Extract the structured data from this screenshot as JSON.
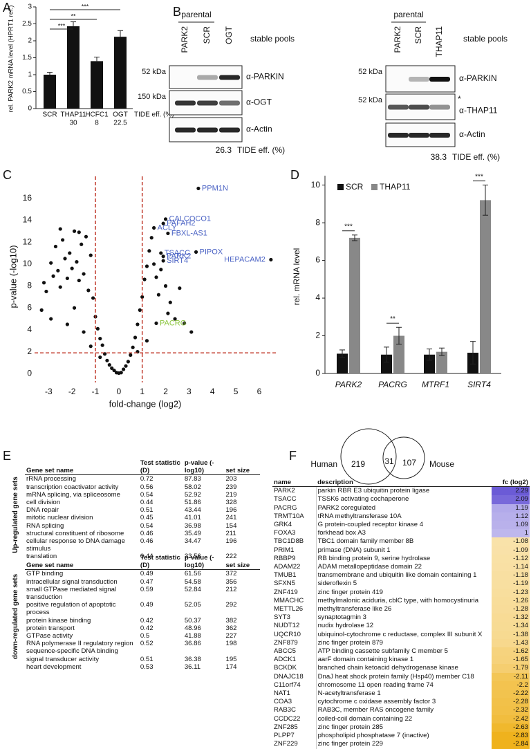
{
  "panels": [
    "A",
    "B",
    "C",
    "D",
    "E",
    "F"
  ],
  "chart_data": [
    {
      "type": "bar",
      "ylabel": "rel. PARK2 mRNA level (HPRT1 ref.)",
      "categories": [
        "SCR",
        "THAP11",
        "HCFC1",
        "OGT"
      ],
      "values": [
        1.0,
        2.43,
        1.4,
        2.12
      ],
      "errors": [
        0.07,
        0.13,
        0.12,
        0.18
      ],
      "color": "#111111",
      "ylim": [
        0,
        3
      ],
      "yticks": [
        0,
        0.5,
        1,
        1.5,
        2,
        2.5,
        3
      ],
      "tide": [
        null,
        30,
        8,
        22.5
      ],
      "tide_label": "TIDE eff. (%)",
      "significance": [
        {
          "from": 0,
          "to": 3,
          "label": "***"
        },
        {
          "from": 0,
          "to": 2,
          "label": "**"
        },
        {
          "from": 0,
          "to": 1,
          "label": "***"
        }
      ]
    },
    {
      "type": "scatter",
      "xlabel": "fold-change (log2)",
      "ylabel": "p-value (-log10)",
      "xlim": [
        -3.6,
        6.8
      ],
      "ylim": [
        -0.8,
        18
      ],
      "xticks": [
        -3,
        -2,
        -1,
        0,
        1,
        2,
        3,
        4,
        5,
        6
      ],
      "yticks": [
        0,
        2,
        4,
        6,
        8,
        10,
        12,
        14,
        16
      ],
      "thresholds": {
        "x": [
          -1,
          1
        ],
        "y": 1.9,
        "color": "#c0392b"
      },
      "color": "#111111",
      "x": [
        -3.2,
        -3.1,
        -2.9,
        -2.8,
        -2.7,
        -2.6,
        -2.5,
        -2.4,
        -2.3,
        -2.2,
        -2.1,
        -2.0,
        -1.9,
        -1.8,
        -1.7,
        -1.6,
        -1.5,
        -1.4,
        -1.3,
        -1.2,
        -1.1,
        -1.0,
        -0.9,
        -0.8,
        -0.7,
        -0.6,
        -0.5,
        -0.4,
        -0.3,
        -0.2,
        -0.1,
        0,
        0.1,
        0.2,
        0.3,
        0.4,
        0.5,
        0.6,
        0.7,
        0.8,
        0.9,
        1.0,
        1.1,
        1.2,
        1.3,
        1.4,
        1.5,
        1.6,
        1.7,
        1.8,
        2.0,
        2.2,
        2.4,
        2.6,
        2.8,
        3.1,
        -2.9,
        -3.3,
        -1.9,
        -2.2,
        -1.5,
        0.8,
        -0.8,
        1.2,
        -1.2,
        2.1,
        -2.5,
        -1.7
      ],
      "values": [
        8.3,
        7.5,
        10.1,
        8.9,
        11.6,
        9.4,
        7.9,
        12.2,
        10.5,
        8.7,
        11.0,
        9.6,
        13.0,
        10.2,
        8.5,
        11.8,
        9.1,
        12.5,
        7.6,
        10.8,
        6.9,
        5.2,
        4.1,
        3.2,
        2.6,
        1.8,
        1.2,
        0.8,
        0.5,
        0.3,
        0.1,
        0.05,
        0.1,
        0.4,
        0.7,
        1.1,
        1.7,
        2.4,
        3.3,
        4.5,
        5.8,
        7.0,
        8.6,
        9.8,
        11.2,
        12.4,
        10.0,
        8.8,
        7.2,
        9.5,
        8.0,
        6.5,
        5.0,
        7.8,
        4.6,
        3.8,
        5.0,
        5.8,
        6.0,
        4.5,
        3.8,
        2.0,
        1.5,
        3.0,
        2.5,
        5.5,
        13.2,
        12.9
      ],
      "labeled_points": [
        {
          "label": "PPM1N",
          "x": 3.4,
          "y": 16.9,
          "color": "#4a62c4"
        },
        {
          "label": "CALCOCO1",
          "x": 2.0,
          "y": 14.1,
          "color": "#4a62c4"
        },
        {
          "label": "PAFAH2",
          "x": 1.9,
          "y": 13.7,
          "color": "#4a62c4"
        },
        {
          "label": "ACLY",
          "x": 1.5,
          "y": 13.3,
          "color": "#4a62c4"
        },
        {
          "label": "FBXL-AS1",
          "x": 2.1,
          "y": 12.8,
          "color": "#4a62c4"
        },
        {
          "label": "TSACC",
          "x": 1.8,
          "y": 11.0,
          "color": "#4a62c4"
        },
        {
          "label": "PIPOX",
          "x": 3.3,
          "y": 11.1,
          "color": "#4a62c4"
        },
        {
          "label": "PARK2",
          "x": 1.9,
          "y": 10.7,
          "color": "#4a62c4"
        },
        {
          "label": "SIRT4",
          "x": 1.9,
          "y": 10.3,
          "color": "#4a62c4"
        },
        {
          "label": "HEPACAM2",
          "x": 6.5,
          "y": 10.4,
          "color": "#4a62c4"
        },
        {
          "label": "PACRG",
          "x": 1.6,
          "y": 4.6,
          "color": "#8cc63f"
        }
      ]
    },
    {
      "type": "grouped_bar",
      "ylabel": "rel. mRNA level",
      "categories": [
        "PARK2",
        "PACRG",
        "MTRF1",
        "SIRT4"
      ],
      "series": [
        {
          "name": "SCR",
          "color": "#111111",
          "values": [
            1.05,
            1.0,
            1.0,
            1.1
          ],
          "errors": [
            0.2,
            0.4,
            0.3,
            0.6
          ]
        },
        {
          "name": "THAP11",
          "color": "#888888",
          "values": [
            7.2,
            2.0,
            1.15,
            9.2
          ],
          "errors": [
            0.15,
            0.45,
            0.2,
            0.8
          ]
        }
      ],
      "ylim": [
        0,
        10.5
      ],
      "yticks": [
        0,
        2,
        4,
        6,
        8,
        10
      ],
      "significance": [
        {
          "category": 0,
          "label": "***"
        },
        {
          "category": 1,
          "label": "**"
        },
        {
          "category": 3,
          "label": "***"
        }
      ]
    }
  ],
  "blots": {
    "left": {
      "header": "parental",
      "lanes": [
        "PARK2",
        "SCR",
        "OGT"
      ],
      "pools": "stable pools",
      "rows": [
        {
          "kda": "52 kDa",
          "antibody": "α-PARKIN"
        },
        {
          "kda": "150 kDa",
          "antibody": "α-OGT"
        },
        {
          "kda": null,
          "antibody": "α-Actin"
        }
      ],
      "tide": 26.3,
      "tide_label": "TIDE eff. (%)"
    },
    "right": {
      "header": "parental",
      "lanes": [
        "PARK2",
        "SCR",
        "THAP11"
      ],
      "pools": "stable pools",
      "rows": [
        {
          "kda": "52 kDa",
          "antibody": "α-PARKIN"
        },
        {
          "kda": "52 kDa",
          "antibody": "α-THAP11",
          "mark": "*"
        },
        {
          "kda": null,
          "antibody": "α-Actin"
        }
      ],
      "tide": 38.3,
      "tide_label": "TIDE eff. (%)"
    }
  },
  "tables": {
    "columns": [
      "Gene set name",
      "Test statistic (D)",
      "p-value (-log10)",
      "set size"
    ],
    "up": {
      "label": "Up-regulated gene sets",
      "rows": [
        [
          "rRNA processing",
          0.72,
          87.83,
          203
        ],
        [
          "transcription coactivator activity",
          0.56,
          58.02,
          239
        ],
        [
          "mRNA splicing, via spliceosome",
          0.54,
          52.92,
          219
        ],
        [
          "cell division",
          0.44,
          51.86,
          328
        ],
        [
          "DNA repair",
          0.51,
          43.44,
          196
        ],
        [
          "mitotic nuclear division",
          0.45,
          41.01,
          241
        ],
        [
          "RNA splicing",
          0.54,
          36.98,
          154
        ],
        [
          "structural constituent of ribosome",
          0.46,
          35.49,
          211
        ],
        [
          "cellular response to DNA damage stimulus",
          0.46,
          34.47,
          196
        ],
        [
          "translation",
          0.44,
          33.56,
          222
        ]
      ]
    },
    "down": {
      "label": "down-regulated gene sets",
      "rows": [
        [
          "GTP binding",
          0.49,
          61.56,
          372
        ],
        [
          "intracellular signal transduction",
          0.47,
          54.58,
          356
        ],
        [
          "small GTPase mediated signal transduction",
          0.59,
          52.84,
          212
        ],
        [
          "positive regulation of apoptotic process",
          0.49,
          52.05,
          292
        ],
        [
          "protein kinase binding",
          0.42,
          50.37,
          382
        ],
        [
          "protein transport",
          0.42,
          48.96,
          362
        ],
        [
          "GTPase activity",
          0.5,
          41.88,
          227
        ],
        [
          "RNA polymerase II regulatory region sequence-specific DNA binding",
          0.52,
          36.86,
          198
        ],
        [
          "signal transducer activity",
          0.51,
          36.38,
          195
        ],
        [
          "heart development",
          0.53,
          36.11,
          174
        ]
      ]
    }
  },
  "venn": {
    "left": "Human",
    "right": "Mouse",
    "left_only": 219,
    "both": 31,
    "right_only": 107
  },
  "overlap_table": {
    "columns": [
      "name",
      "description",
      "fc (log2)"
    ],
    "fc_colors": {
      "high": "#6b5bd6",
      "zero": "#ffffff",
      "low": "#efb21c"
    },
    "rows": [
      [
        "PARK2",
        "parkin RBR E3 ubiquitin protein ligase",
        2.29
      ],
      [
        "TSACC",
        "TSSK6 activating cochaperone",
        2.09
      ],
      [
        "PACRG",
        "PARK2 coregulated",
        1.19
      ],
      [
        "TRMT10A",
        "tRNA methyltransferase 10A",
        1.12
      ],
      [
        "GRK4",
        "G protein-coupled receptor kinase 4",
        1.09
      ],
      [
        "FOXA3",
        "forkhead box A3",
        1
      ],
      [
        "TBC1D8B",
        "TBC1 domain family member 8B",
        -1.08
      ],
      [
        "PRIM1",
        "primase (DNA) subunit 1",
        -1.09
      ],
      [
        "RBBP9",
        "RB binding protein 9, serine hydrolase",
        -1.12
      ],
      [
        "ADAM22",
        "ADAM metallopeptidase domain 22",
        -1.14
      ],
      [
        "TMUB1",
        "transmembrane and ubiquitin like domain containing 1",
        -1.18
      ],
      [
        "SFXN5",
        "sideroflexin 5",
        -1.19
      ],
      [
        "ZNF419",
        "zinc finger protein 419",
        -1.23
      ],
      [
        "MMACHC",
        "methylmalonic aciduria, cblC type, with homocystinuria",
        -1.26
      ],
      [
        "METTL26",
        "methyltransferase like 26",
        -1.28
      ],
      [
        "SYT3",
        "synaptotagmin 3",
        -1.32
      ],
      [
        "NUDT12",
        "nudix hydrolase 12",
        -1.34
      ],
      [
        "UQCR10",
        "ubiquinol-cytochrome c reductase, complex III subunit X",
        -1.38
      ],
      [
        "ZNF879",
        "zinc finger protein 879",
        -1.43
      ],
      [
        "ABCC5",
        "ATP binding cassette subfamily C member 5",
        -1.62
      ],
      [
        "ADCK1",
        "aarF domain containing kinase 1",
        -1.65
      ],
      [
        "BCKDK",
        "branched chain ketoacid dehydrogenase kinase",
        -1.79
      ],
      [
        "DNAJC18",
        "DnaJ heat shock protein family (Hsp40) member C18",
        -2.11
      ],
      [
        "C11orf74",
        "chromosome 11 open reading frame 74",
        -2.2
      ],
      [
        "NAT1",
        "N-acetyltransferase 1",
        -2.22
      ],
      [
        "COA3",
        "cytochrome c oxidase assembly factor 3",
        -2.28
      ],
      [
        "RAB3C",
        "RAB3C, member RAS oncogene family",
        -2.32
      ],
      [
        "CCDC22",
        "coiled-coil domain containing 22",
        -2.42
      ],
      [
        "ZNF285",
        "zinc finger protein 285",
        -2.63
      ],
      [
        "PLPP7",
        "phospholipid phosphatase 7 (inactive)",
        -2.83
      ],
      [
        "ZNF229",
        "zinc finger protein 229",
        -2.84
      ]
    ]
  }
}
